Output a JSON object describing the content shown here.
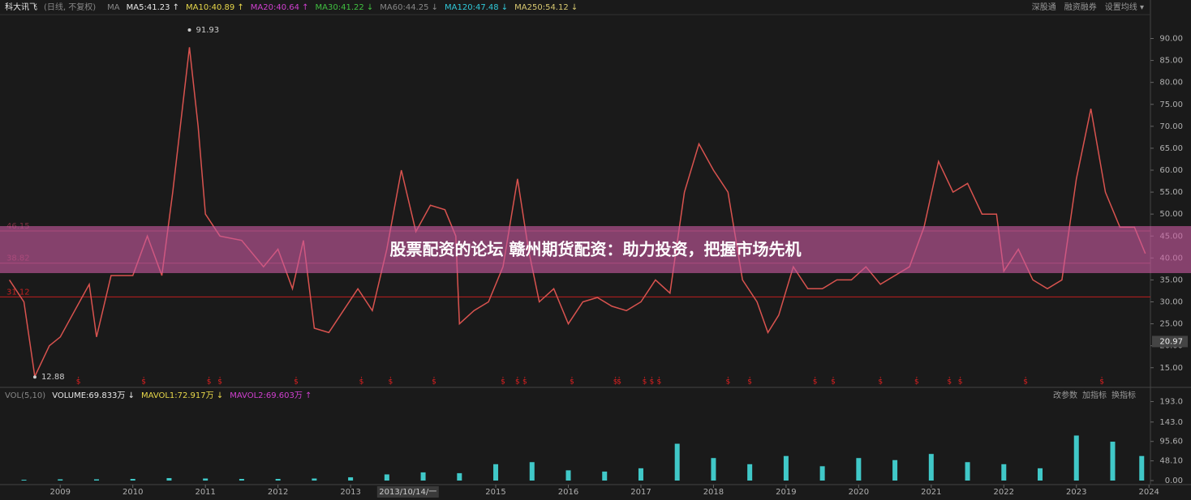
{
  "header": {
    "stock": "科大讯飞",
    "mode": "(日线, 不复权)",
    "ma_label": "MA",
    "ma": [
      {
        "text": "MA5:41.23 ↑",
        "color": "#e8e8e8"
      },
      {
        "text": "MA10:40.89 ↑",
        "color": "#e8d84a"
      },
      {
        "text": "MA20:40.64 ↑",
        "color": "#d040d0"
      },
      {
        "text": "MA30:41.22 ↓",
        "color": "#40c040"
      },
      {
        "text": "MA60:44.25 ↓",
        "color": "#888888"
      },
      {
        "text": "MA120:47.48 ↓",
        "color": "#30c8d8"
      },
      {
        "text": "MA250:54.12 ↓",
        "color": "#d8c870"
      }
    ],
    "tools": [
      "深股通",
      "融资融券",
      "设置均线 ▾"
    ]
  },
  "volume_header": {
    "label": "VOL(5,10)",
    "items": [
      {
        "text": "VOLUME:69.833万 ↓",
        "color": "#e8e8e8"
      },
      {
        "text": "MAVOL1:72.917万 ↓",
        "color": "#e8d84a"
      },
      {
        "text": "MAVOL2:69.603万 ↑",
        "color": "#d040d0"
      }
    ],
    "tools": [
      "改参数",
      "加指标",
      "换指标"
    ]
  },
  "banner": {
    "title": "股票配资的论坛 赣州期货配资：助力投资，把握市场先机"
  },
  "chart_data": [
    {
      "type": "line",
      "color": "#d9534f",
      "x": [
        2008.3,
        2008.5,
        2008.65,
        2008.85,
        2009.0,
        2009.2,
        2009.4,
        2009.5,
        2009.7,
        2010.0,
        2010.2,
        2010.4,
        2010.55,
        2010.78,
        2010.9,
        2011.0,
        2011.2,
        2011.5,
        2011.8,
        2012.0,
        2012.2,
        2012.35,
        2012.5,
        2012.7,
        2012.9,
        2013.1,
        2013.3,
        2013.5,
        2013.7,
        2013.9,
        2014.1,
        2014.3,
        2014.45,
        2014.5,
        2014.7,
        2014.9,
        2015.1,
        2015.3,
        2015.45,
        2015.6,
        2015.8,
        2016.0,
        2016.2,
        2016.4,
        2016.6,
        2016.8,
        2017.0,
        2017.2,
        2017.4,
        2017.6,
        2017.8,
        2018.0,
        2018.2,
        2018.4,
        2018.6,
        2018.75,
        2018.9,
        2019.1,
        2019.3,
        2019.5,
        2019.7,
        2019.9,
        2020.1,
        2020.3,
        2020.5,
        2020.7,
        2020.9,
        2021.1,
        2021.3,
        2021.5,
        2021.7,
        2021.9,
        2022.0,
        2022.2,
        2022.4,
        2022.6,
        2022.8,
        2023.0,
        2023.2,
        2023.4,
        2023.6,
        2023.8,
        2023.95
      ],
      "values": [
        35,
        30,
        13,
        20,
        22,
        28,
        34,
        22,
        36,
        36,
        45,
        36,
        55,
        88,
        70,
        50,
        45,
        44,
        38,
        42,
        33,
        44,
        24,
        23,
        28,
        33,
        28,
        42,
        60,
        46,
        52,
        51,
        45,
        25,
        28,
        30,
        38,
        58,
        42,
        30,
        33,
        25,
        30,
        31,
        29,
        28,
        30,
        35,
        32,
        55,
        66,
        60,
        55,
        35,
        30,
        23,
        27,
        38,
        33,
        33,
        35,
        35,
        38,
        34,
        36,
        38,
        47,
        62,
        55,
        57,
        50,
        50,
        37,
        42,
        35,
        33,
        35,
        58,
        74,
        55,
        47,
        47,
        41
      ],
      "xlim": [
        2008.17,
        2024.02
      ],
      "ylim": [
        12,
        96
      ],
      "yticks": [
        {
          "value": 15,
          "label": "15.00"
        },
        {
          "value": 20,
          "label": "20.00"
        },
        {
          "value": 25,
          "label": "25.00"
        },
        {
          "value": 30,
          "label": "30.00"
        },
        {
          "value": 35,
          "label": "35.00"
        },
        {
          "value": 40,
          "label": "40.00"
        },
        {
          "value": 45,
          "label": "45.00"
        },
        {
          "value": 50,
          "label": "50.00"
        },
        {
          "value": 55,
          "label": "55.00"
        },
        {
          "value": 60,
          "label": "60.00"
        },
        {
          "value": 65,
          "label": "65.00"
        },
        {
          "value": 70,
          "label": "70.00"
        },
        {
          "value": 75,
          "label": "75.00"
        },
        {
          "value": 80,
          "label": "80.00"
        },
        {
          "value": 85,
          "label": "85.00"
        },
        {
          "value": 90,
          "label": "90.00"
        }
      ],
      "levels": [
        {
          "value": 46.15,
          "label": "46.15",
          "color": "#7a3040"
        },
        {
          "value": 38.82,
          "label": "38.82",
          "color": "#7a3040"
        },
        {
          "value": 31.12,
          "label": "31.12",
          "color": "#c02020"
        }
      ],
      "annotations": [
        {
          "text": "91.93",
          "x": 2010.78,
          "y": 91.93
        },
        {
          "text": "12.88",
          "x": 2008.65,
          "y": 12.88
        }
      ],
      "price_marker": {
        "value": 20.97,
        "label": "20.97"
      },
      "signal_label": "$",
      "signals": [
        2009.25,
        2010.15,
        2011.05,
        2011.2,
        2012.25,
        2013.15,
        2013.55,
        2014.15,
        2015.1,
        2015.3,
        2015.4,
        2016.05,
        2016.65,
        2016.7,
        2017.05,
        2017.15,
        2017.25,
        2018.2,
        2018.5,
        2019.4,
        2019.65,
        2020.3,
        2020.8,
        2021.25,
        2021.4,
        2022.3,
        2023.35
      ]
    },
    {
      "type": "bar",
      "color": "#40c8c8",
      "x": [
        2008.5,
        2009.0,
        2009.5,
        2010.0,
        2010.5,
        2011.0,
        2011.5,
        2012.0,
        2012.5,
        2013.0,
        2013.5,
        2014.0,
        2014.5,
        2015.0,
        2015.5,
        2016.0,
        2016.5,
        2017.0,
        2017.5,
        2018.0,
        2018.5,
        2019.0,
        2019.5,
        2020.0,
        2020.5,
        2021.0,
        2021.5,
        2022.0,
        2022.5,
        2023.0,
        2023.5,
        2023.9
      ],
      "values": [
        2,
        3,
        3,
        4,
        6,
        5,
        4,
        4,
        5,
        8,
        15,
        20,
        18,
        40,
        45,
        25,
        22,
        30,
        90,
        55,
        40,
        60,
        35,
        55,
        50,
        65,
        45,
        40,
        30,
        110,
        95,
        60
      ],
      "xlim": [
        2008.17,
        2024.02
      ],
      "ylim": [
        0,
        200
      ],
      "yticks": [
        {
          "value": 0,
          "label": "0.00"
        },
        {
          "value": 48.1,
          "label": "48.10"
        },
        {
          "value": 95.6,
          "label": "95.60"
        },
        {
          "value": 143,
          "label": "143.0"
        },
        {
          "value": 193,
          "label": "193.0"
        }
      ],
      "xticks": [
        2009,
        2010,
        2011,
        2012,
        2013,
        2015,
        2016,
        2017,
        2018,
        2019,
        2020,
        2021,
        2022,
        2023,
        2024
      ],
      "cursor": {
        "value": 2013.79,
        "label": "2013/10/14/一"
      }
    }
  ]
}
